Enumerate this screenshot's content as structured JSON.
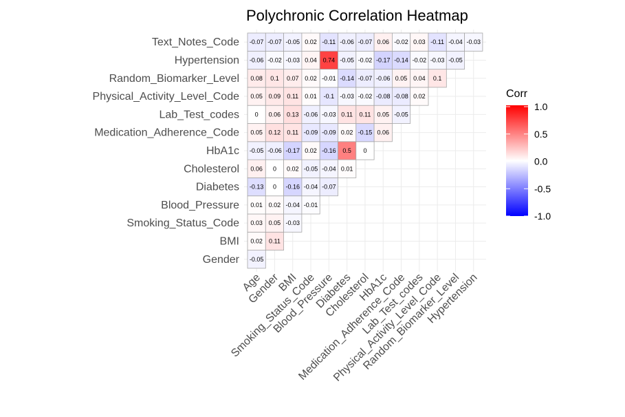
{
  "chart_data": {
    "type": "heatmap",
    "title": "Polychronic Correlation Heatmap",
    "xlabel": "",
    "ylabel": "",
    "variables": [
      "Age",
      "Gender",
      "BMI",
      "Smoking_Status_Code",
      "Blood_Pressure",
      "Diabetes",
      "Cholesterol",
      "HbA1c",
      "Medication_Adherence_Code",
      "Lab_Test_codes",
      "Physical_Activity_Level_Code",
      "Random_Biomarker_Level",
      "Hypertension"
    ],
    "y_categories": [
      "Gender",
      "BMI",
      "Smoking_Status_Code",
      "Blood_Pressure",
      "Diabetes",
      "Cholesterol",
      "HbA1c",
      "Medication_Adherence_Code",
      "Lab_Test_codes",
      "Physical_Activity_Level_Code",
      "Random_Biomarker_Level",
      "Hypertension",
      "Text_Notes_Code"
    ],
    "rows": [
      {
        "y": "Gender",
        "values": [
          -0.05
        ]
      },
      {
        "y": "BMI",
        "values": [
          0.02,
          0.11
        ]
      },
      {
        "y": "Smoking_Status_Code",
        "values": [
          0.03,
          0.05,
          -0.03
        ]
      },
      {
        "y": "Blood_Pressure",
        "values": [
          0.01,
          0.02,
          -0.04,
          -0.01
        ]
      },
      {
        "y": "Diabetes",
        "values": [
          -0.13,
          0,
          -0.16,
          -0.04,
          -0.07
        ]
      },
      {
        "y": "Cholesterol",
        "values": [
          0.06,
          0,
          0.02,
          -0.05,
          -0.04,
          0.01
        ]
      },
      {
        "y": "HbA1c",
        "values": [
          -0.05,
          -0.06,
          -0.17,
          0.02,
          -0.16,
          0.5,
          0
        ]
      },
      {
        "y": "Medication_Adherence_Code",
        "values": [
          0.05,
          0.12,
          0.11,
          -0.09,
          -0.09,
          0.02,
          -0.15,
          0.06
        ]
      },
      {
        "y": "Lab_Test_codes",
        "values": [
          0,
          0.06,
          0.13,
          -0.06,
          -0.03,
          0.11,
          0.11,
          0.05,
          -0.05
        ]
      },
      {
        "y": "Physical_Activity_Level_Code",
        "values": [
          0.05,
          0.09,
          0.11,
          0.01,
          -0.1,
          -0.03,
          -0.02,
          -0.08,
          -0.08,
          0.02
        ]
      },
      {
        "y": "Random_Biomarker_Level",
        "values": [
          0.08,
          0.1,
          0.07,
          0.02,
          -0.01,
          -0.14,
          -0.07,
          -0.06,
          0.05,
          0.04,
          0.1
        ]
      },
      {
        "y": "Hypertension",
        "values": [
          -0.06,
          -0.02,
          -0.03,
          0.04,
          0.74,
          -0.05,
          -0.02,
          -0.17,
          -0.14,
          -0.02,
          -0.03,
          -0.05
        ]
      },
      {
        "y": "Text_Notes_Code",
        "values": [
          -0.07,
          -0.07,
          -0.05,
          0.02,
          -0.11,
          -0.06,
          -0.07,
          0.06,
          -0.02,
          0.03,
          -0.11,
          -0.04,
          -0.03
        ]
      }
    ],
    "color_scale": {
      "low": "#0000ff",
      "mid": "#ffffff",
      "high": "#ff0000",
      "limits": [
        -1,
        1
      ]
    },
    "legend": {
      "title": "Corr",
      "ticks": [
        "1.0",
        "0.5",
        "0.0",
        "-0.5",
        "-1.0"
      ],
      "tick_values": [
        1,
        0.5,
        0,
        -0.5,
        -1
      ],
      "placement": "right"
    },
    "grid": true,
    "cell_border_color": "#a6a6a6",
    "grid_color": "#ebebeb"
  }
}
